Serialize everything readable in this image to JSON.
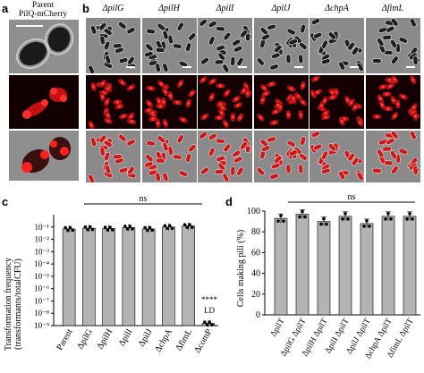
{
  "panel_a": {
    "letter": "a",
    "title_line1": "Parent",
    "title_line2": "PilQ-mCherry"
  },
  "panel_b": {
    "letter": "b",
    "columns": [
      "ΔpilG",
      "ΔpilH",
      "ΔpilI",
      "ΔpilJ",
      "ΔchpA",
      "ΔfimL"
    ]
  },
  "panel_c": {
    "letter": "c",
    "ylabel_line1": "Transformation frequency",
    "ylabel_line2": "(transformants/totalCFU)",
    "ns_label": "ns",
    "significance": "****",
    "ld_label": "LD"
  },
  "panel_d": {
    "letter": "d",
    "ylabel": "Cells making pili (%)",
    "ns_label": "ns"
  },
  "colors": {
    "bar": "#b3b3b3",
    "phase_bg": "#8a8a8a",
    "cell_dark": "#1c1c1c",
    "red_bg": "#1a0000",
    "red_spot": "#ff2020"
  },
  "chart_data": [
    {
      "type": "bar",
      "panel": "c",
      "categories": [
        "Parent",
        "ΔpilG",
        "ΔpilH",
        "ΔpilI",
        "ΔpilJ",
        "ΔchpA",
        "ΔfimL",
        "ΔcomP"
      ],
      "values": [
        0.07,
        0.08,
        0.075,
        0.09,
        0.07,
        0.1,
        0.12,
        1.5e-09
      ],
      "ylabel": "Transformation frequency (transformants/totalCFU)",
      "yscale": "log",
      "yticks": [
        "10⁻¹",
        "10⁻²",
        "10⁻³",
        "10⁻⁴",
        "10⁻⁵",
        "10⁻⁶",
        "10⁻⁷",
        "10⁻⁸",
        "10⁻⁹"
      ],
      "ylim": [
        1e-09,
        1
      ],
      "annotations": [
        "ns",
        "****",
        "LD"
      ]
    },
    {
      "type": "bar",
      "panel": "d",
      "categories": [
        "ΔpilT",
        "ΔpilG ΔpilT",
        "ΔpilH ΔpilT",
        "ΔpilI ΔpilT",
        "ΔpilJ ΔpilT",
        "ΔchpA ΔpilT",
        "ΔfimL ΔpilT"
      ],
      "values": [
        93,
        97,
        90,
        95,
        88,
        95,
        95
      ],
      "ylabel": "Cells making pili (%)",
      "yticks": [
        "0",
        "20",
        "40",
        "60",
        "80",
        "100"
      ],
      "ylim": [
        0,
        100
      ],
      "annotations": [
        "ns"
      ]
    }
  ]
}
